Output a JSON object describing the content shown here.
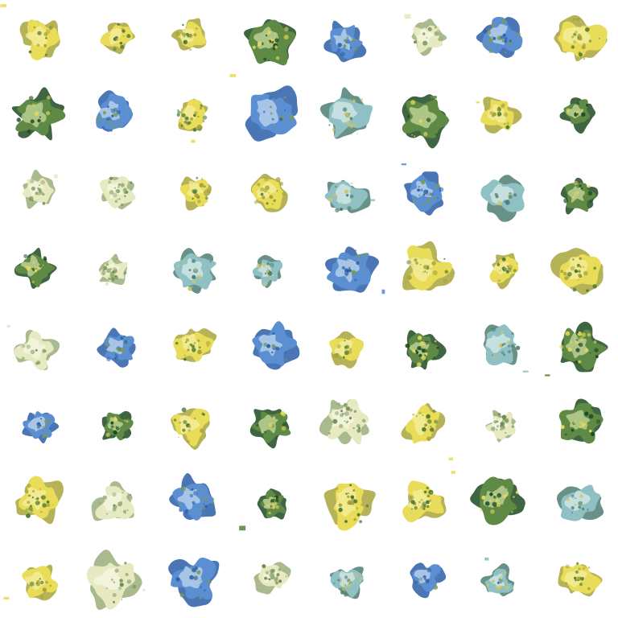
{
  "image": {
    "kind": "generated-sample-grid",
    "rows": 8,
    "cols": 8,
    "background_color": "#ffffff",
    "palettes": {
      "yellow": {
        "base": "#e8dc58",
        "dark": "#a9a43a",
        "light": "#f6f0a6",
        "speck": "#4f7a35"
      },
      "green": {
        "base": "#5f8a45",
        "dark": "#1f4a22",
        "light": "#cfe0a4",
        "speck": "#e6d85a"
      },
      "blue": {
        "base": "#5b8fd2",
        "dark": "#2a5ea8",
        "light": "#c8dcee",
        "speck": "#7a9a55"
      },
      "pale": {
        "base": "#e7e9c0",
        "dark": "#9aae7a",
        "light": "#f5f7e6",
        "speck": "#6c8a4f"
      },
      "teal": {
        "base": "#8fc0c4",
        "dark": "#4e7e73",
        "light": "#ddeeed",
        "speck": "#c9c56a"
      }
    },
    "tiles": [
      [
        "yellow",
        "yellow",
        "yellow",
        "green",
        "blue",
        "pale",
        "blue",
        "yellow"
      ],
      [
        "green",
        "blue",
        "yellow",
        "blue",
        "teal",
        "green",
        "yellow",
        "green"
      ],
      [
        "pale",
        "pale",
        "yellow",
        "yellow",
        "teal",
        "blue",
        "teal",
        "green"
      ],
      [
        "green",
        "pale",
        "teal",
        "teal",
        "blue",
        "yellow",
        "yellow",
        "yellow"
      ],
      [
        "pale",
        "blue",
        "yellow",
        "blue",
        "yellow",
        "green",
        "teal",
        "green"
      ],
      [
        "blue",
        "green",
        "yellow",
        "green",
        "pale",
        "yellow",
        "pale",
        "green"
      ],
      [
        "yellow",
        "pale",
        "blue",
        "green",
        "yellow",
        "yellow",
        "green",
        "teal"
      ],
      [
        "yellow",
        "pale",
        "blue",
        "pale",
        "teal",
        "blue",
        "teal",
        "yellow"
      ]
    ]
  }
}
